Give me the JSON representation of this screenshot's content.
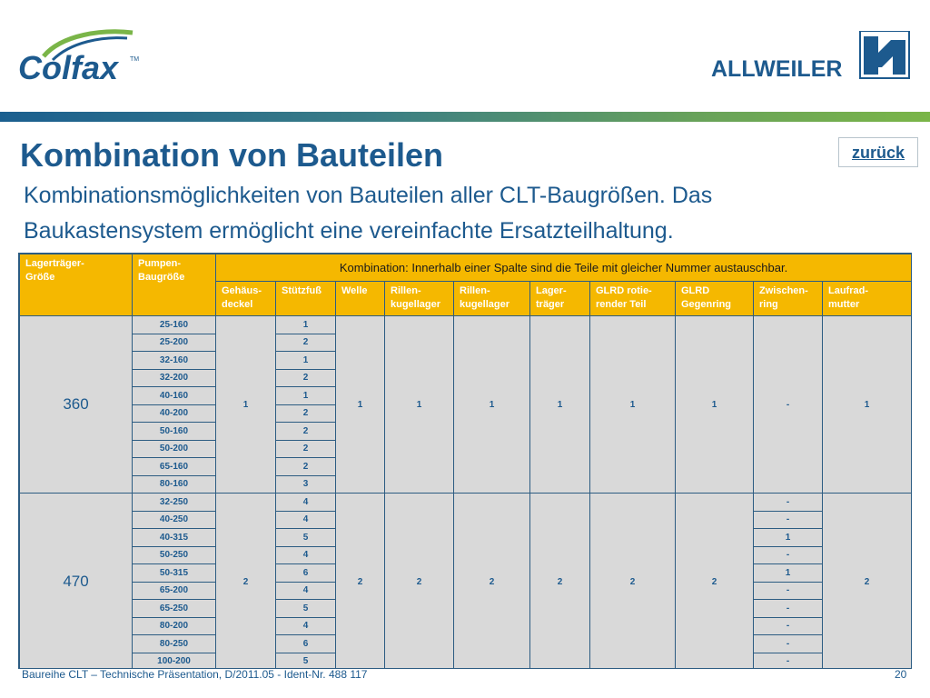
{
  "brand": {
    "left_logo": "Colfax",
    "left_logo_mark": "TM",
    "right_logo": "ALLWEILER",
    "colors": {
      "primary_blue": "#1d5a8e",
      "header_yellow": "#f5b800",
      "cell_grey": "#d9d9d9",
      "green": "#7ab548"
    }
  },
  "slide": {
    "title": "Kombination von Bauteilen",
    "back_link": "zurück",
    "subtitle": "Kombinationsmöglichkeiten von Bauteilen aller CLT-Baugrößen. Das Baukastensystem ermöglicht eine vereinfachte Ersatzteilhaltung."
  },
  "table": {
    "col_lager": "Lagerträger-\nGröße",
    "col_pumpen": "Pumpen-\nBaugröße",
    "combination_header": "Kombination: Innerhalb einer Spalte sind die Teile mit gleicher Nummer austauschbar.",
    "sub_headers": [
      "Gehäus-\ndeckel",
      "Stützfuß",
      "Welle",
      "Rillen-\nkugellager",
      "Rillen-\nkugellager",
      "Lager-\nträger",
      "GLRD rotie-\nrender Teil",
      "GLRD\nGegenring",
      "Zwischen-\nring",
      "Laufrad-\nmutter"
    ],
    "groups": [
      {
        "size": "360",
        "gehaeusedeckel": "1",
        "welle": "1",
        "rillenkugellager_1": "1",
        "rillenkugellager_2": "1",
        "lagertraeger": "1",
        "glrd_rot": "1",
        "glrd_gegenring": "1",
        "zwischenring": "-",
        "laufradmutter": "1",
        "rows": [
          {
            "pump": "25-160",
            "stuetzfuss": "1"
          },
          {
            "pump": "25-200",
            "stuetzfuss": "2"
          },
          {
            "pump": "32-160",
            "stuetzfuss": "1"
          },
          {
            "pump": "32-200",
            "stuetzfuss": "2"
          },
          {
            "pump": "40-160",
            "stuetzfuss": "1"
          },
          {
            "pump": "40-200",
            "stuetzfuss": "2"
          },
          {
            "pump": "50-160",
            "stuetzfuss": "2"
          },
          {
            "pump": "50-200",
            "stuetzfuss": "2"
          },
          {
            "pump": "65-160",
            "stuetzfuss": "2"
          },
          {
            "pump": "80-160",
            "stuetzfuss": "3"
          }
        ]
      },
      {
        "size": "470",
        "gehaeusedeckel": "2",
        "welle": "2",
        "rillenkugellager_1": "2",
        "rillenkugellager_2": "2",
        "lagertraeger": "2",
        "glrd_rot": "2",
        "glrd_gegenring": "2",
        "laufradmutter": "2",
        "rows": [
          {
            "pump": "32-250",
            "stuetzfuss": "4",
            "zwischenring": "-"
          },
          {
            "pump": "40-250",
            "stuetzfuss": "4",
            "zwischenring": "-"
          },
          {
            "pump": "40-315",
            "stuetzfuss": "5",
            "zwischenring": "1"
          },
          {
            "pump": "50-250",
            "stuetzfuss": "4",
            "zwischenring": "-"
          },
          {
            "pump": "50-315",
            "stuetzfuss": "6",
            "zwischenring": "1"
          },
          {
            "pump": "65-200",
            "stuetzfuss": "4",
            "zwischenring": "-"
          },
          {
            "pump": "65-250",
            "stuetzfuss": "5",
            "zwischenring": "-"
          },
          {
            "pump": "80-200",
            "stuetzfuss": "4",
            "zwischenring": "-"
          },
          {
            "pump": "80-250",
            "stuetzfuss": "6",
            "zwischenring": "-"
          },
          {
            "pump": "100-200",
            "stuetzfuss": "5",
            "zwischenring": "-"
          }
        ]
      }
    ]
  },
  "footer": {
    "text": "Baureihe CLT – Technische Präsentation, D/2011.05 - Ident-Nr. 488 117",
    "page": "20"
  }
}
